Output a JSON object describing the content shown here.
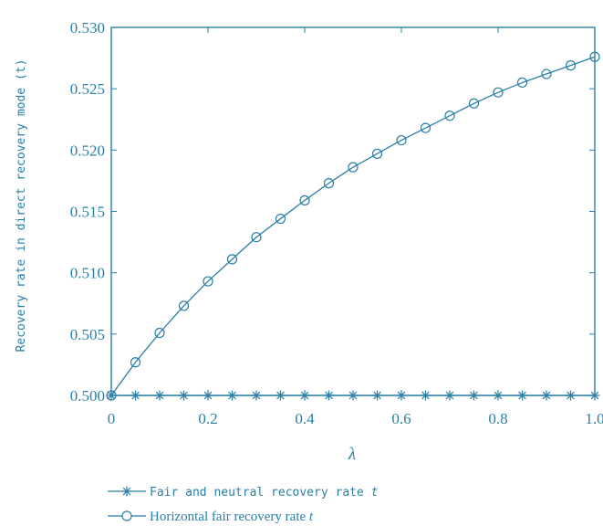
{
  "chart_data": {
    "type": "line",
    "title": "",
    "xlabel": "λ",
    "ylabel": "Recovery rate in direct recovery mode (t)",
    "xlim": [
      0,
      1.0
    ],
    "ylim": [
      0.5,
      0.53
    ],
    "xticks": [
      "0",
      "0.2",
      "0.4",
      "0.6",
      "0.8",
      "1.0"
    ],
    "yticks": [
      "0.500",
      "0.505",
      "0.510",
      "0.515",
      "0.520",
      "0.525",
      "0.530"
    ],
    "grid": false,
    "legend_position": "bottom-left, below plot",
    "x": [
      0,
      0.05,
      0.1,
      0.15,
      0.2,
      0.25,
      0.3,
      0.35,
      0.4,
      0.45,
      0.5,
      0.55,
      0.6,
      0.65,
      0.7,
      0.75,
      0.8,
      0.85,
      0.9,
      0.95,
      1.0
    ],
    "series": [
      {
        "name": "Fair and neutral recovery rate t",
        "legend_prefix": "Fair and neutral recovery rate",
        "legend_var": "t",
        "marker": "asterisk",
        "values": [
          0.5,
          0.5,
          0.5,
          0.5,
          0.5,
          0.5,
          0.5,
          0.5,
          0.5,
          0.5,
          0.5,
          0.5,
          0.5,
          0.5,
          0.5,
          0.5,
          0.5,
          0.5,
          0.5,
          0.5,
          0.5
        ]
      },
      {
        "name": "Horizontal fair recovery rate t",
        "legend_prefix": "Horizontal fair recovery rate",
        "legend_var": "t",
        "marker": "circle",
        "values": [
          0.5,
          0.5027,
          0.5051,
          0.5073,
          0.5093,
          0.5111,
          0.5129,
          0.5144,
          0.5159,
          0.5173,
          0.5186,
          0.5197,
          0.5208,
          0.5218,
          0.5228,
          0.5238,
          0.5247,
          0.5255,
          0.5262,
          0.5269,
          0.5276
        ]
      }
    ],
    "colors": {
      "line": "#2a7fa6",
      "text": "#2a7fa6"
    }
  }
}
